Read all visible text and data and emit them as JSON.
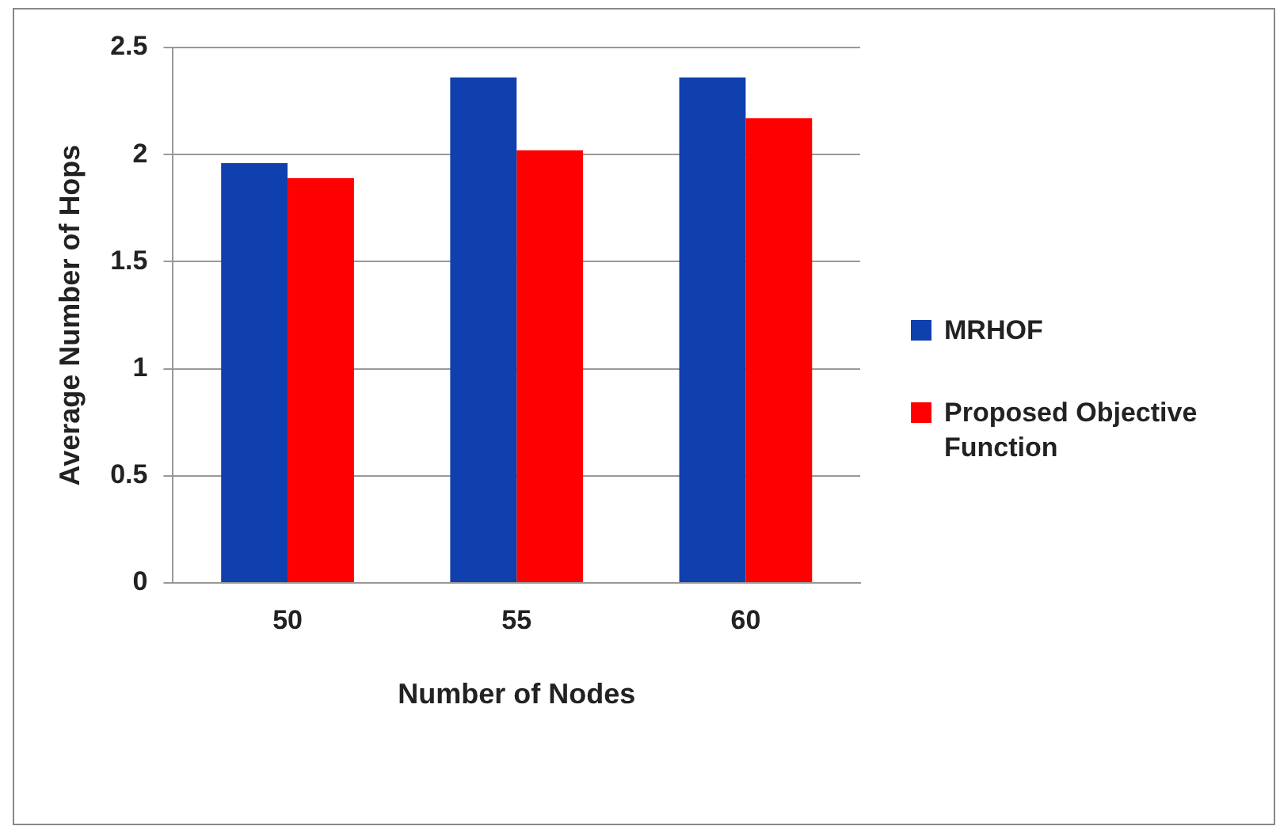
{
  "chart_data": {
    "type": "bar",
    "xlabel": "Number of Nodes",
    "ylabel": "Average Number of Hops",
    "categories": [
      "50",
      "55",
      "60"
    ],
    "series": [
      {
        "name": "MRHOF",
        "color": "#103fae",
        "values": [
          1.96,
          2.36,
          2.36
        ]
      },
      {
        "name": "Proposed Objective Function",
        "color": "#ff0000",
        "values": [
          1.89,
          2.02,
          2.17
        ]
      }
    ],
    "ylim": [
      0,
      2.5
    ],
    "yticks": [
      0,
      0.5,
      1,
      1.5,
      2,
      2.5
    ],
    "grid": "y",
    "legend": "right"
  }
}
